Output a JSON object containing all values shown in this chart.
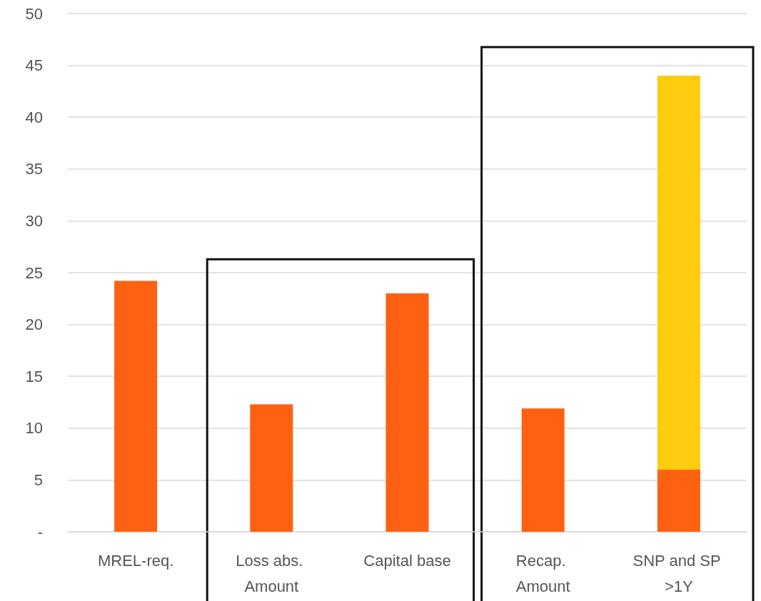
{
  "chart_data": {
    "type": "bar",
    "stacked": true,
    "categories": [
      "MREL-req.",
      "Loss abs. Amount",
      "Capital base",
      "Recap. Amount",
      "SNP and SP >1Y"
    ],
    "series": [
      {
        "color": "#ff6112",
        "values": [
          24.2,
          12.3,
          23.0,
          11.9,
          6.0
        ]
      },
      {
        "color": "#ffcc10",
        "values": [
          null,
          null,
          null,
          null,
          38.0
        ]
      }
    ],
    "ylim": [
      0,
      50
    ],
    "yticks": [
      {
        "value": 0,
        "label": "-"
      },
      5,
      10,
      15,
      20,
      25,
      30,
      35,
      40,
      45,
      50
    ],
    "grid": "y"
  }
}
